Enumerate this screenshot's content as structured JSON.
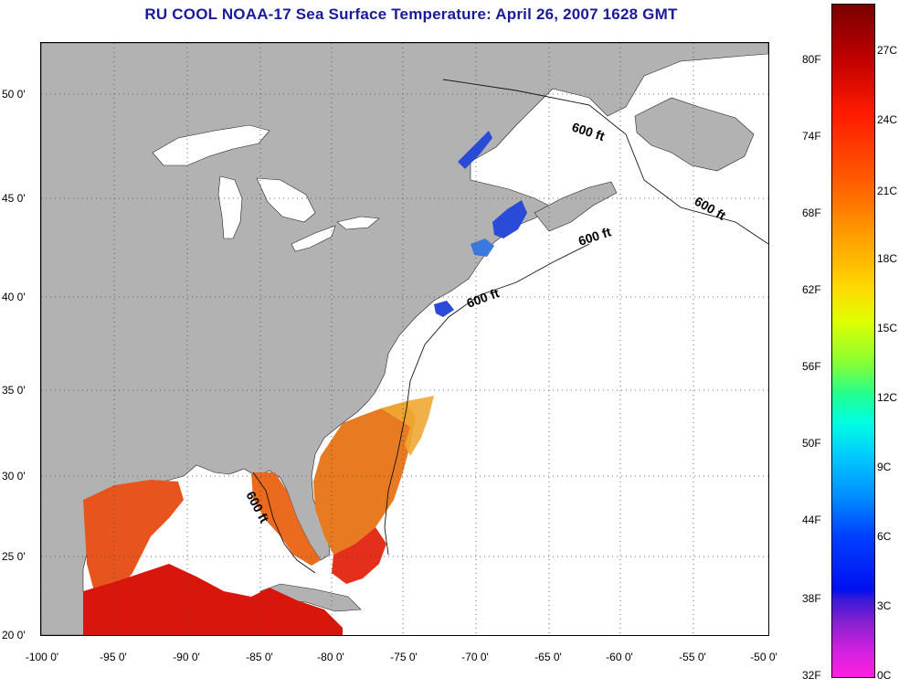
{
  "title": "RU COOL  NOAA-17  Sea Surface Temperature:  April 26, 2007 1628 GMT",
  "y_ticks": [
    "50 0'",
    "45 0'",
    "40 0'",
    "35 0'",
    "30 0'",
    "25 0'",
    "20 0'"
  ],
  "x_ticks": [
    "-100 0'",
    "-95 0'",
    "-90 0'",
    "-85 0'",
    "-80 0'",
    "-75 0'",
    "-70 0'",
    "-65 0'",
    "-60 0'",
    "-55 0'",
    "-50 0'"
  ],
  "contour_label": "600 ft",
  "colorbar": {
    "fahrenheit_labels": [
      "80F",
      "74F",
      "68F",
      "62F",
      "56F",
      "50F",
      "44F",
      "38F",
      "32F"
    ],
    "celsius_labels": [
      "27C",
      "24C",
      "21C",
      "18C",
      "15C",
      "12C",
      "9C",
      "6C",
      "3C",
      "0C"
    ]
  },
  "colors": {
    "land": "#b2b2b2",
    "no_data_ocean": "#ffffff",
    "title": "#1a1a9c",
    "warm_sst": "#e8401c",
    "hot_sst": "#d8140c",
    "cold_sst": "#2a4ad8"
  }
}
